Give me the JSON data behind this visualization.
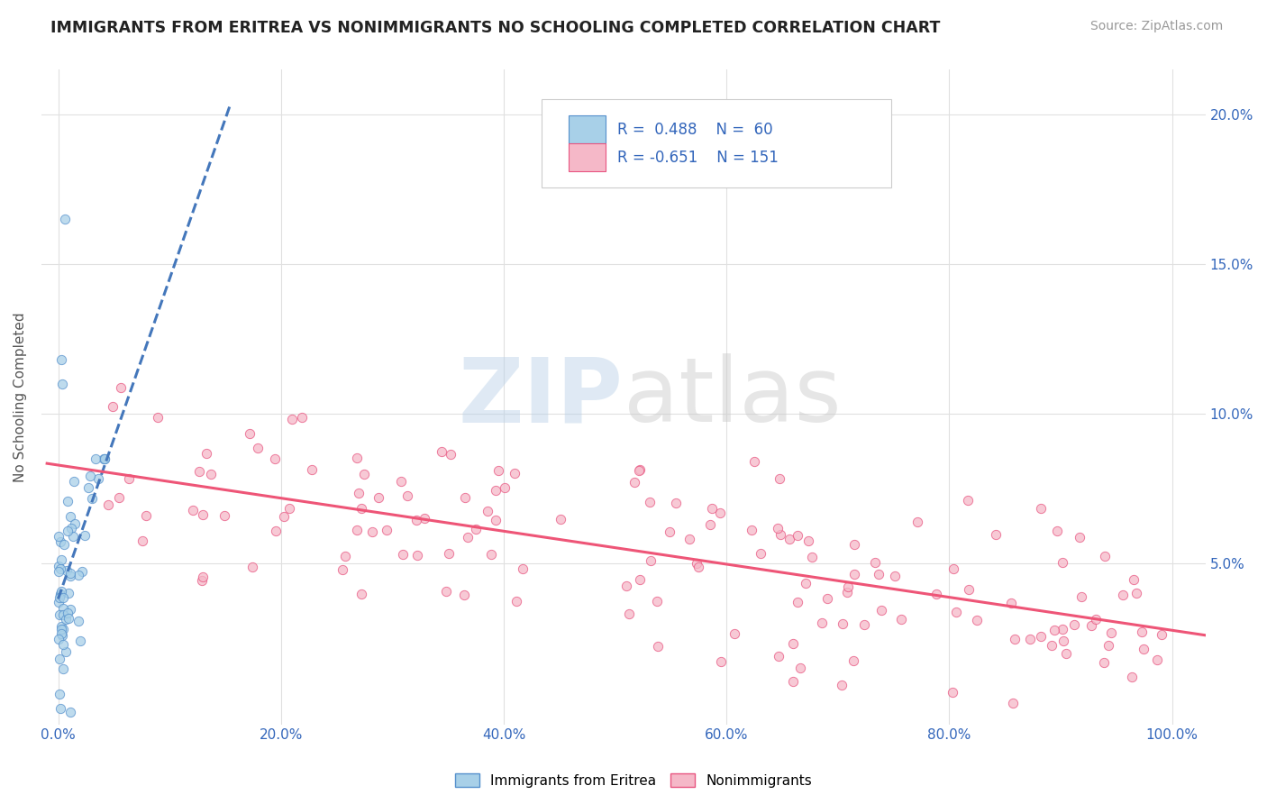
{
  "title": "IMMIGRANTS FROM ERITREA VS NONIMMIGRANTS NO SCHOOLING COMPLETED CORRELATION CHART",
  "source": "Source: ZipAtlas.com",
  "ylabel": "No Schooling Completed",
  "legend_label1": "Immigrants from Eritrea",
  "legend_label2": "Nonimmigrants",
  "R1": 0.488,
  "N1": 60,
  "R2": -0.651,
  "N2": 151,
  "blue_color": "#a8d0e8",
  "pink_color": "#f5b8c8",
  "blue_edge_color": "#5590cc",
  "pink_edge_color": "#e85580",
  "blue_line_color": "#4477bb",
  "pink_line_color": "#ee5577",
  "title_color": "#222222",
  "axis_label_color": "#3366bb",
  "watermark_color": "#c5d8ea",
  "background_color": "#ffffff",
  "grid_color": "#e0e0e0",
  "seed": 42
}
